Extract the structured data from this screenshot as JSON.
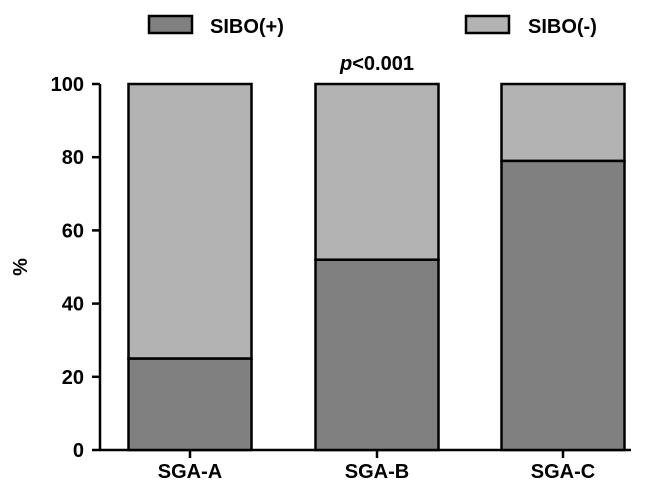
{
  "chart_data": {
    "type": "bar",
    "stacked": true,
    "categories": [
      "SGA-A",
      "SGA-B",
      "SGA-C"
    ],
    "series": [
      {
        "name": "SIBO(+)",
        "values": [
          25,
          52,
          79
        ],
        "color": "#808080"
      },
      {
        "name": "SIBO(-)",
        "values": [
          75,
          48,
          21
        ],
        "color": "#b3b3b3"
      }
    ],
    "ylabel": "%",
    "ylim": [
      0,
      100
    ],
    "yticks": [
      "0",
      "20",
      "40",
      "60",
      "80",
      "100"
    ],
    "annotation": {
      "prefix": "p",
      "text": "<0.001",
      "category": "SGA-B"
    },
    "legend_position": "top",
    "grid": false
  }
}
